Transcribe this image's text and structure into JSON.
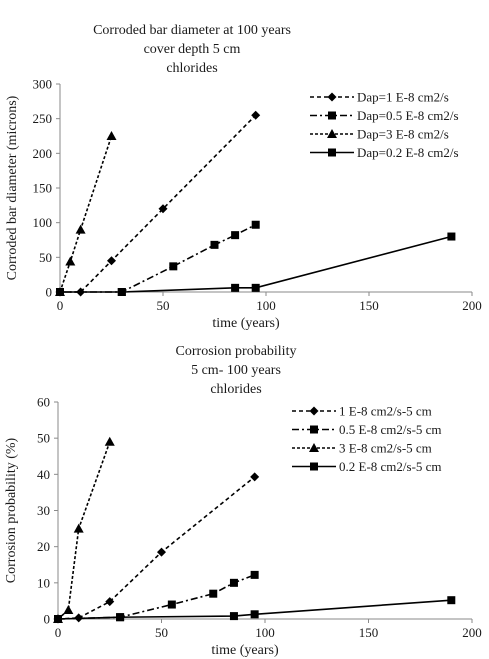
{
  "chart_data": [
    {
      "type": "line",
      "title": [
        "Corroded bar diameter at  100 years",
        "cover depth 5 cm",
        "chlorides"
      ],
      "xlabel": "time (years)",
      "ylabel": "Corroded bar diameter (microns)",
      "xlim": [
        0,
        200
      ],
      "ylim": [
        0,
        300
      ],
      "xticks": [
        0,
        50,
        100,
        150,
        200
      ],
      "yticks": [
        0,
        50,
        100,
        150,
        200,
        250,
        300
      ],
      "grid": false,
      "legend_position": "top-right",
      "series": [
        {
          "name": "Dap=1 E-8 cm2/s",
          "color": "#000000",
          "dash": "short-dash",
          "marker": "diamond",
          "x": [
            0,
            10,
            25,
            50,
            95
          ],
          "y": [
            0,
            0,
            45,
            120,
            255
          ]
        },
        {
          "name": "Dap=0.5 E-8 cm2/s",
          "color": "#000000",
          "dash": "dash-dot",
          "marker": "square",
          "x": [
            0,
            30,
            55,
            75,
            85,
            95
          ],
          "y": [
            0,
            0,
            37,
            68,
            82,
            97
          ]
        },
        {
          "name": "Dap=3 E-8 cm2/s",
          "color": "#000000",
          "dash": "dotted-dash",
          "marker": "triangle",
          "x": [
            0,
            5,
            10,
            25
          ],
          "y": [
            0,
            44,
            90,
            225
          ]
        },
        {
          "name": "Dap=0.2 E-8 cm2/s",
          "color": "#000000",
          "dash": "solid",
          "marker": "square",
          "x": [
            0,
            30,
            85,
            95,
            190
          ],
          "y": [
            0,
            0,
            6,
            6,
            80
          ]
        }
      ]
    },
    {
      "type": "line",
      "title": [
        "Corrosion probability",
        "5 cm- 100 years",
        "chlorides"
      ],
      "xlabel": "time (years)",
      "ylabel": "Corrosion probability (%)",
      "xlim": [
        0,
        200
      ],
      "ylim": [
        0,
        60
      ],
      "xticks": [
        0,
        50,
        100,
        150,
        200
      ],
      "yticks": [
        0,
        10,
        20,
        30,
        40,
        50,
        60
      ],
      "grid": false,
      "legend_position": "top-right",
      "series": [
        {
          "name": "1 E-8 cm2/s-5 cm",
          "color": "#000000",
          "dash": "short-dash",
          "marker": "diamond",
          "x": [
            0,
            10,
            25,
            50,
            95
          ],
          "y": [
            0,
            0.3,
            4.8,
            18.5,
            39.3
          ]
        },
        {
          "name": "0.5 E-8 cm2/s-5 cm",
          "color": "#000000",
          "dash": "dash-dot",
          "marker": "square",
          "x": [
            0,
            30,
            55,
            75,
            85,
            95
          ],
          "y": [
            0,
            0.5,
            4,
            7,
            10,
            12.2
          ]
        },
        {
          "name": "3 E-8 cm2/s-5 cm",
          "color": "#000000",
          "dash": "dotted-dash",
          "marker": "triangle",
          "x": [
            0,
            5,
            10,
            25
          ],
          "y": [
            0,
            2.5,
            25,
            49
          ]
        },
        {
          "name": "0.2 E-8 cm2/s-5 cm",
          "color": "#000000",
          "dash": "solid",
          "marker": "square",
          "x": [
            0,
            30,
            85,
            95,
            190
          ],
          "y": [
            0,
            0.5,
            0.8,
            1.3,
            5.2
          ]
        }
      ]
    }
  ]
}
